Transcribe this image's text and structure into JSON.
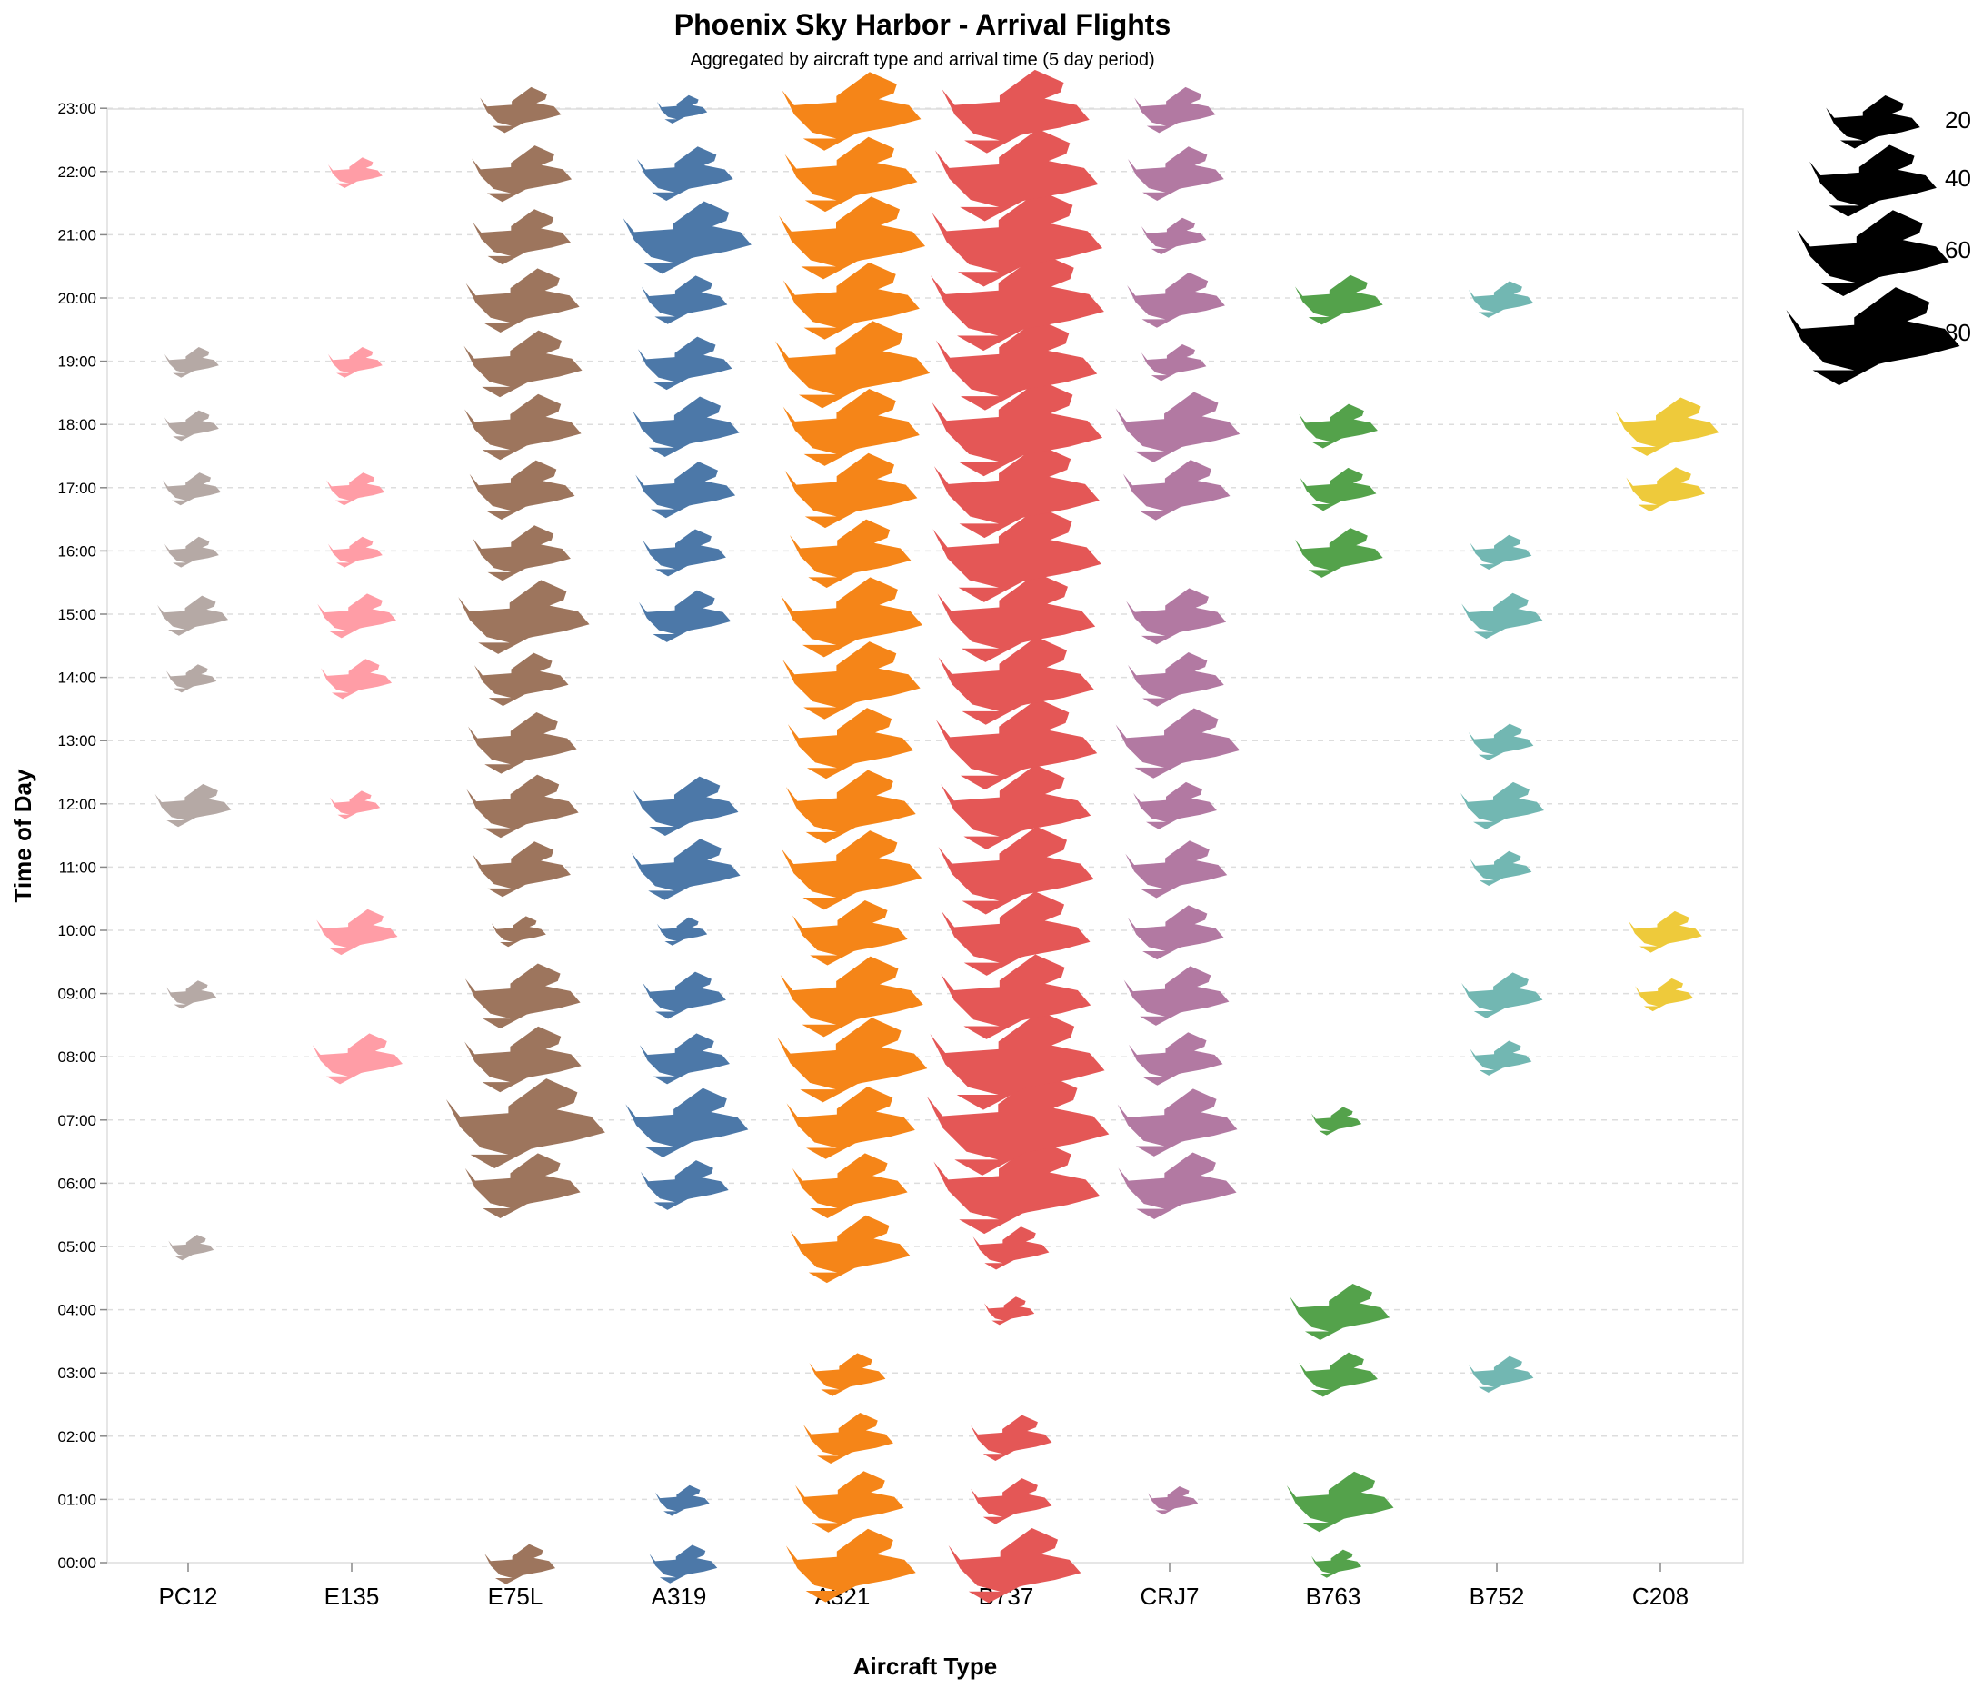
{
  "chart_data": {
    "type": "scatter",
    "mark": "airplane-icon",
    "title": "Phoenix Sky Harbor - Arrival Flights",
    "subtitle": "Aggregated by aircraft type and arrival time (5 day period)",
    "xlabel": "Aircraft Type",
    "ylabel": "Time of Day",
    "categories": [
      "PC12",
      "E135",
      "E75L",
      "A319",
      "A321",
      "B737",
      "CRJ7",
      "B763",
      "B752",
      "C208"
    ],
    "y_ticks": [
      "00:00",
      "01:00",
      "02:00",
      "03:00",
      "04:00",
      "05:00",
      "06:00",
      "07:00",
      "08:00",
      "09:00",
      "10:00",
      "11:00",
      "12:00",
      "13:00",
      "14:00",
      "15:00",
      "16:00",
      "17:00",
      "18:00",
      "19:00",
      "20:00",
      "21:00",
      "22:00",
      "23:00"
    ],
    "grid": true,
    "size_legend": {
      "placement": "top-right",
      "values": [
        20,
        40,
        60,
        80
      ]
    },
    "colors": {
      "PC12": "#b5a9a5",
      "E135": "#ff9da6",
      "E75L": "#9d755d",
      "A319": "#4c78a8",
      "A321": "#f58518",
      "B737": "#e45756",
      "CRJ7": "#b279a2",
      "B763": "#54a24b",
      "B752": "#72b7b2",
      "C208": "#eeca3b",
      "legend": "#000000"
    },
    "series": [
      {
        "name": "PC12",
        "points": [
          [
            5,
            3
          ],
          [
            9,
            4
          ],
          [
            12,
            12
          ],
          [
            14,
            4
          ],
          [
            15,
            10
          ],
          [
            16,
            5
          ],
          [
            17,
            6
          ],
          [
            18,
            5
          ],
          [
            19,
            5
          ]
        ]
      },
      {
        "name": "E135",
        "points": [
          [
            8,
            18
          ],
          [
            10,
            14
          ],
          [
            12,
            4
          ],
          [
            14,
            10
          ],
          [
            15,
            13
          ],
          [
            16,
            5
          ],
          [
            17,
            6
          ],
          [
            19,
            5
          ],
          [
            22,
            5
          ]
        ]
      },
      {
        "name": "E75L",
        "points": [
          [
            0,
            10
          ],
          [
            6,
            32
          ],
          [
            7,
            66
          ],
          [
            8,
            33
          ],
          [
            9,
            32
          ],
          [
            10,
            5
          ],
          [
            11,
            22
          ],
          [
            12,
            30
          ],
          [
            13,
            28
          ],
          [
            14,
            20
          ],
          [
            15,
            43
          ],
          [
            16,
            22
          ],
          [
            17,
            26
          ],
          [
            18,
            33
          ],
          [
            19,
            34
          ],
          [
            20,
            31
          ],
          [
            21,
            22
          ],
          [
            22,
            23
          ],
          [
            23,
            14
          ]
        ]
      },
      {
        "name": "A319",
        "points": [
          [
            0,
            9
          ],
          [
            1,
            5
          ],
          [
            6,
            17
          ],
          [
            7,
            37
          ],
          [
            8,
            18
          ],
          [
            9,
            15
          ],
          [
            10,
            4
          ],
          [
            11,
            28
          ],
          [
            12,
            26
          ],
          [
            15,
            19
          ],
          [
            16,
            15
          ],
          [
            17,
            23
          ],
          [
            18,
            27
          ],
          [
            19,
            20
          ],
          [
            20,
            16
          ],
          [
            21,
            41
          ],
          [
            22,
            21
          ],
          [
            23,
            4
          ]
        ]
      },
      {
        "name": "A321",
        "points": [
          [
            0,
            42
          ],
          [
            1,
            28
          ],
          [
            2,
            18
          ],
          [
            3,
            12
          ],
          [
            4,
            0
          ],
          [
            5,
            35
          ],
          [
            6,
            32
          ],
          [
            7,
            41
          ],
          [
            8,
            58
          ],
          [
            9,
            52
          ],
          [
            10,
            32
          ],
          [
            11,
            50
          ],
          [
            12,
            42
          ],
          [
            13,
            39
          ],
          [
            14,
            48
          ],
          [
            15,
            51
          ],
          [
            16,
            36
          ],
          [
            17,
            44
          ],
          [
            18,
            47
          ],
          [
            19,
            62
          ],
          [
            20,
            47
          ],
          [
            21,
            55
          ],
          [
            22,
            44
          ],
          [
            23,
            49
          ]
        ]
      },
      {
        "name": "B737",
        "points": [
          [
            0,
            44
          ],
          [
            1,
            14
          ],
          [
            2,
            14
          ],
          [
            4,
            4
          ],
          [
            5,
            12
          ],
          [
            6,
            73
          ],
          [
            7,
            89
          ],
          [
            8,
            81
          ],
          [
            9,
            58
          ],
          [
            10,
            57
          ],
          [
            11,
            63
          ],
          [
            12,
            58
          ],
          [
            13,
            68
          ],
          [
            14,
            63
          ],
          [
            15,
            65
          ],
          [
            16,
            75
          ],
          [
            17,
            72
          ],
          [
            18,
            77
          ],
          [
            19,
            68
          ],
          [
            20,
            80
          ],
          [
            21,
            77
          ],
          [
            22,
            70
          ],
          [
            23,
            56
          ]
        ]
      },
      {
        "name": "CRJ7",
        "points": [
          [
            1,
            4
          ],
          [
            6,
            34
          ],
          [
            7,
            35
          ],
          [
            8,
            20
          ],
          [
            9,
            26
          ],
          [
            10,
            21
          ],
          [
            11,
            24
          ],
          [
            12,
            15
          ],
          [
            13,
            38
          ],
          [
            14,
            21
          ],
          [
            15,
            23
          ],
          [
            17,
            27
          ],
          [
            18,
            38
          ],
          [
            19,
            8
          ],
          [
            20,
            22
          ],
          [
            21,
            8
          ],
          [
            22,
            21
          ],
          [
            23,
            14
          ]
        ]
      },
      {
        "name": "B763",
        "points": [
          [
            0,
            4
          ],
          [
            1,
            27
          ],
          [
            3,
            13
          ],
          [
            4,
            23
          ],
          [
            7,
            4
          ],
          [
            16,
            17
          ],
          [
            17,
            12
          ],
          [
            18,
            13
          ],
          [
            20,
            17
          ]
        ]
      },
      {
        "name": "B752",
        "points": [
          [
            3,
            8
          ],
          [
            8,
            7
          ],
          [
            9,
            14
          ],
          [
            11,
            7
          ],
          [
            12,
            15
          ],
          [
            13,
            8
          ],
          [
            15,
            14
          ],
          [
            16,
            7
          ],
          [
            20,
            8
          ]
        ]
      },
      {
        "name": "C208",
        "points": [
          [
            9,
            6
          ],
          [
            10,
            11
          ],
          [
            17,
            13
          ],
          [
            18,
            25
          ]
        ]
      }
    ]
  }
}
